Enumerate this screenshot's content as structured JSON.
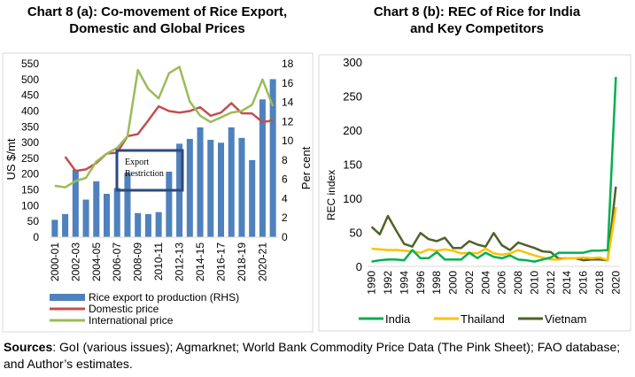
{
  "chart_data": [
    {
      "type": "bar+line",
      "title": "Chart 8 (a): Co-movement of Rice Export, Domestic and Global Prices",
      "ylabel": "US $/mt",
      "y2label": "Per cent",
      "ylim": [
        0,
        550
      ],
      "y2lim": [
        0,
        18
      ],
      "yticks": [
        0,
        50,
        100,
        150,
        200,
        250,
        300,
        350,
        400,
        450,
        500,
        550
      ],
      "y2ticks": [
        0,
        2,
        4,
        6,
        8,
        10,
        12,
        14,
        16,
        18
      ],
      "categories": [
        "2000-01",
        "2001-02",
        "2002-03",
        "2003-04",
        "2004-05",
        "2005-06",
        "2006-07",
        "2007-08",
        "2008-09",
        "2009-10",
        "2010-11",
        "2011-12",
        "2012-13",
        "2013-14",
        "2014-15",
        "2015-16",
        "2016-17",
        "2017-18",
        "2018-19",
        "2019-20",
        "2020-21",
        "2021-22"
      ],
      "xtick_labels": [
        "2000-01",
        "2002-03",
        "2004-05",
        "2006-07",
        "2008-09",
        "2010-11",
        "2012-13",
        "2014-15",
        "2016-17",
        "2018-19",
        "2020-21"
      ],
      "series": [
        {
          "name": "Rice export to production (RHS)",
          "kind": "bar",
          "axis": "right",
          "color": "#4f81bd",
          "values": [
            1.8,
            2.4,
            7.0,
            3.9,
            5.8,
            4.5,
            5.1,
            6.7,
            2.5,
            2.4,
            2.6,
            6.8,
            9.7,
            10.2,
            11.4,
            10.1,
            9.8,
            11.4,
            10.3,
            8.0,
            14.3,
            16.4
          ]
        },
        {
          "name": "Domestic price",
          "kind": "line",
          "axis": "left",
          "color": "#c0504d",
          "values": [
            null,
            255,
            210,
            215,
            235,
            265,
            268,
            320,
            327,
            370,
            415,
            400,
            395,
            400,
            412,
            385,
            395,
            425,
            393,
            392,
            365,
            370
          ]
        },
        {
          "name": "International price",
          "kind": "line",
          "axis": "left",
          "color": "#9bbb59",
          "values": [
            163,
            158,
            178,
            188,
            240,
            265,
            283,
            320,
            530,
            470,
            440,
            520,
            540,
            430,
            385,
            365,
            380,
            395,
            400,
            420,
            500,
            415
          ]
        }
      ],
      "annotation": "Export\nRestriction",
      "annotation_lines": [
        "Export",
        "Restriction"
      ],
      "legend": "bottom"
    },
    {
      "type": "line",
      "title": "Chart 8 (b): REC of Rice for India and Key Competitors",
      "ylabel": "REC index",
      "ylim": [
        0,
        300
      ],
      "yticks": [
        0,
        50,
        100,
        150,
        200,
        250,
        300
      ],
      "x": [
        1990,
        1991,
        1992,
        1993,
        1994,
        1995,
        1996,
        1997,
        1998,
        1999,
        2000,
        2001,
        2002,
        2003,
        2004,
        2005,
        2006,
        2007,
        2008,
        2009,
        2010,
        2011,
        2012,
        2013,
        2014,
        2015,
        2016,
        2017,
        2018,
        2019,
        2020
      ],
      "xtick_labels": [
        "1990",
        "1992",
        "1994",
        "1996",
        "1998",
        "2000",
        "2002",
        "2004",
        "2006",
        "2008",
        "2010",
        "2012",
        "2014",
        "2016",
        "2018",
        "2020"
      ],
      "series": [
        {
          "name": "India",
          "color": "#00b050",
          "values": [
            7,
            9,
            10,
            10,
            9,
            24,
            12,
            12,
            21,
            10,
            10,
            10,
            20,
            12,
            20,
            14,
            12,
            16,
            10,
            9,
            7,
            10,
            13,
            20,
            20,
            20,
            20,
            23,
            23,
            24,
            278
          ]
        },
        {
          "name": "Thailand",
          "color": "#ffc000",
          "values": [
            26,
            25,
            24,
            24,
            23,
            22,
            20,
            25,
            23,
            25,
            23,
            19,
            20,
            19,
            26,
            19,
            17,
            19,
            24,
            20,
            16,
            13,
            10,
            10,
            12,
            12,
            13,
            12,
            13,
            9,
            87
          ]
        },
        {
          "name": "Vietnam",
          "color": "#4f6228",
          "values": [
            58,
            47,
            74,
            53,
            33,
            29,
            49,
            40,
            37,
            42,
            27,
            27,
            37,
            32,
            29,
            49,
            31,
            24,
            35,
            31,
            27,
            22,
            21,
            11,
            12,
            12,
            9,
            10,
            10,
            9,
            117
          ]
        }
      ],
      "legend": "bottom"
    }
  ],
  "sources": {
    "label": "Sources",
    "text": ": GoI (various issues); Agmarknet; World Bank Commodity Price Data (The Pink Sheet); FAO database; and Author’s estimates."
  }
}
